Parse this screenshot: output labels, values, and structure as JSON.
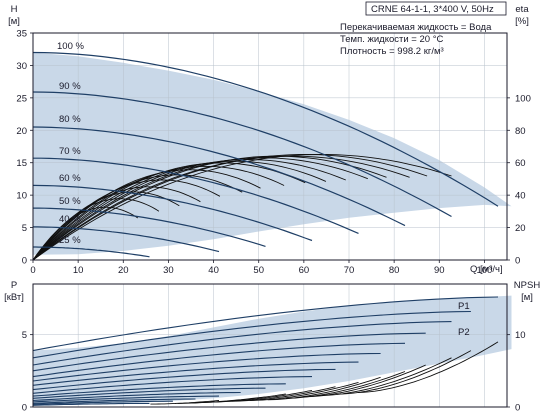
{
  "chart_data": [
    {
      "type": "line",
      "title": "CRNE 64-1-1, 3*400 V, 50Hz",
      "info": [
        "Перекачиваемая жидкость = Вода",
        "Темп. жидкости = 20 °C",
        "Плотность = 998.2 кг/м³"
      ],
      "ylabel_left": "H",
      "ylabel_left_unit": "[м]",
      "ylabel_right": "eta",
      "ylabel_right_unit": "[%]",
      "xlabel": "Q [м³/ч]",
      "xlim": [
        0,
        105
      ],
      "ylim": [
        0,
        35
      ],
      "y2lim": [
        0,
        140
      ],
      "x_ticks": [
        0,
        10,
        20,
        30,
        40,
        50,
        60,
        70,
        80,
        90,
        100
      ],
      "y_ticks": [
        0,
        5,
        10,
        15,
        20,
        25,
        30,
        35
      ],
      "y2_ticks": [
        0,
        20,
        40,
        60,
        80,
        100
      ],
      "grid": true,
      "colors": {
        "band": "#c9d8e8",
        "head_curve": "#1f3f66",
        "eta_curve": "#111111",
        "axis": "#1a1a2a"
      },
      "speed_curves": [
        {
          "label": "100 %",
          "q_max": 103,
          "h0": 32.0,
          "h_end": 8.3
        },
        {
          "label": "90 %",
          "q_max": 92.7,
          "h0": 25.9,
          "h_end": 6.7
        },
        {
          "label": "80 %",
          "q_max": 82.4,
          "h0": 20.5,
          "h_end": 5.3
        },
        {
          "label": "70 %",
          "q_max": 72.1,
          "h0": 15.7,
          "h_end": 4.1
        },
        {
          "label": "60 %",
          "q_max": 61.8,
          "h0": 11.5,
          "h_end": 3.0
        },
        {
          "label": "50 %",
          "q_max": 51.5,
          "h0": 8.0,
          "h_end": 2.1
        },
        {
          "label": "40 %",
          "q_max": 41.2,
          "h0": 5.1,
          "h_end": 1.3
        },
        {
          "label": "25 %",
          "q_max": 25.8,
          "h0": 2.0,
          "h_end": 0.5
        }
      ],
      "band": {
        "q": [
          0,
          10,
          20,
          30,
          40,
          50,
          60,
          70,
          80,
          90,
          100,
          106
        ],
        "h_top": [
          32.0,
          31.4,
          30.4,
          29.2,
          27.8,
          26.0,
          24.0,
          21.6,
          18.8,
          15.4,
          11.2,
          8.3
        ],
        "h_bottom": [
          0.8,
          0.9,
          1.4,
          2.2,
          3.2,
          4.4,
          5.5,
          6.5,
          7.3,
          8.0,
          8.5,
          8.3
        ]
      },
      "efficiency_peak": [
        {
          "speed": 100,
          "q_max": 103,
          "eta_max": 62
        },
        {
          "speed": 95,
          "q_max": 97,
          "eta_max": 62
        },
        {
          "speed": 90,
          "q_max": 92.7,
          "eta_max": 61
        },
        {
          "speed": 85,
          "q_max": 87,
          "eta_max": 61
        },
        {
          "speed": 80,
          "q_max": 82.4,
          "eta_max": 60
        },
        {
          "speed": 75,
          "q_max": 77,
          "eta_max": 59
        },
        {
          "speed": 70,
          "q_max": 72.1,
          "eta_max": 58
        },
        {
          "speed": 65,
          "q_max": 67,
          "eta_max": 57
        },
        {
          "speed": 60,
          "q_max": 61.8,
          "eta_max": 55
        },
        {
          "speed": 55,
          "q_max": 56,
          "eta_max": 53
        },
        {
          "speed": 50,
          "q_max": 51.5,
          "eta_max": 50
        },
        {
          "speed": 45,
          "q_max": 46,
          "eta_max": 47
        },
        {
          "speed": 40,
          "q_max": 41.2,
          "eta_max": 43
        },
        {
          "speed": 35,
          "q_max": 36,
          "eta_max": 40
        },
        {
          "speed": 30,
          "q_max": 31,
          "eta_max": 36
        },
        {
          "speed": 25,
          "q_max": 25.8,
          "eta_max": 31
        }
      ]
    },
    {
      "type": "line",
      "ylabel_left": "P",
      "ylabel_left_unit": "[кВт]",
      "ylabel_right": "NPSH",
      "ylabel_right_unit": "[м]",
      "xlim": [
        0,
        105
      ],
      "ylim": [
        0,
        8.5
      ],
      "y2lim": [
        0,
        17
      ],
      "x_ticks": [
        0,
        10,
        20,
        30,
        40,
        50,
        60,
        70,
        80,
        90,
        100
      ],
      "y_ticks": [
        0,
        5
      ],
      "y2_ticks": [
        0,
        10
      ],
      "grid": true,
      "series_labels": [
        "P1",
        "P2"
      ],
      "band": {
        "q": [
          0,
          10,
          20,
          30,
          40,
          50,
          60,
          70,
          80,
          90,
          100,
          106
        ],
        "p_top": [
          3.9,
          4.1,
          4.4,
          4.9,
          5.5,
          6.1,
          6.6,
          7.0,
          7.3,
          7.5,
          7.6,
          7.7
        ],
        "p_bottom": [
          0.1,
          0.15,
          0.25,
          0.4,
          0.6,
          0.9,
          1.3,
          1.8,
          2.4,
          3.0,
          3.6,
          4.0
        ]
      },
      "p1_curve": [
        {
          "speed": 100,
          "q_max": 103,
          "p_start": 3.9,
          "p_end": 7.6
        },
        {
          "speed": 95,
          "q_max": 97,
          "p_start": 3.4,
          "p_end": 6.6
        },
        {
          "speed": 90,
          "q_max": 92.7,
          "p_start": 2.9,
          "p_end": 5.9
        },
        {
          "speed": 85,
          "q_max": 87,
          "p_start": 2.5,
          "p_end": 5.1
        },
        {
          "speed": 80,
          "q_max": 82.4,
          "p_start": 2.1,
          "p_end": 4.4
        },
        {
          "speed": 75,
          "q_max": 77,
          "p_start": 1.8,
          "p_end": 3.7
        },
        {
          "speed": 70,
          "q_max": 72.1,
          "p_start": 1.5,
          "p_end": 3.1
        },
        {
          "speed": 65,
          "q_max": 67,
          "p_start": 1.2,
          "p_end": 2.6
        },
        {
          "speed": 60,
          "q_max": 61.8,
          "p_start": 0.95,
          "p_end": 2.1
        },
        {
          "speed": 55,
          "q_max": 56,
          "p_start": 0.75,
          "p_end": 1.6
        },
        {
          "speed": 50,
          "q_max": 51.5,
          "p_start": 0.6,
          "p_end": 1.3
        },
        {
          "speed": 45,
          "q_max": 46,
          "p_start": 0.45,
          "p_end": 1.0
        },
        {
          "speed": 40,
          "q_max": 41.2,
          "p_start": 0.35,
          "p_end": 0.75
        },
        {
          "speed": 35,
          "q_max": 36,
          "p_start": 0.25,
          "p_end": 0.55
        },
        {
          "speed": 30,
          "q_max": 31,
          "p_start": 0.18,
          "p_end": 0.4
        },
        {
          "speed": 25,
          "q_max": 25.8,
          "p_start": 0.12,
          "p_end": 0.25
        }
      ],
      "npsh_curve": [
        {
          "speed": 100,
          "q_from": 72,
          "q_to": 103,
          "npsh_from": 2.0,
          "npsh_to": 9.0
        },
        {
          "speed": 95,
          "q_from": 68,
          "q_to": 97,
          "npsh_from": 1.8,
          "npsh_to": 7.8
        },
        {
          "speed": 90,
          "q_from": 64,
          "q_to": 92.7,
          "npsh_from": 1.6,
          "npsh_to": 6.8
        },
        {
          "speed": 85,
          "q_from": 60,
          "q_to": 87,
          "npsh_from": 1.4,
          "npsh_to": 5.8
        },
        {
          "speed": 80,
          "q_from": 56,
          "q_to": 82.4,
          "npsh_from": 1.2,
          "npsh_to": 4.9
        },
        {
          "speed": 75,
          "q_from": 52,
          "q_to": 77,
          "npsh_from": 1.0,
          "npsh_to": 4.1
        },
        {
          "speed": 70,
          "q_from": 48,
          "q_to": 72.1,
          "npsh_from": 0.9,
          "npsh_to": 3.4
        },
        {
          "speed": 65,
          "q_from": 44,
          "q_to": 67,
          "npsh_from": 0.8,
          "npsh_to": 2.8
        },
        {
          "speed": 60,
          "q_from": 40,
          "q_to": 61.8,
          "npsh_from": 0.7,
          "npsh_to": 2.3
        },
        {
          "speed": 55,
          "q_from": 36,
          "q_to": 56,
          "npsh_from": 0.6,
          "npsh_to": 1.8
        },
        {
          "speed": 50,
          "q_from": 32,
          "q_to": 51.5,
          "npsh_from": 0.5,
          "npsh_to": 1.4
        },
        {
          "speed": 40,
          "q_from": 26,
          "q_to": 41.2,
          "npsh_from": 0.4,
          "npsh_to": 0.9
        }
      ]
    }
  ]
}
